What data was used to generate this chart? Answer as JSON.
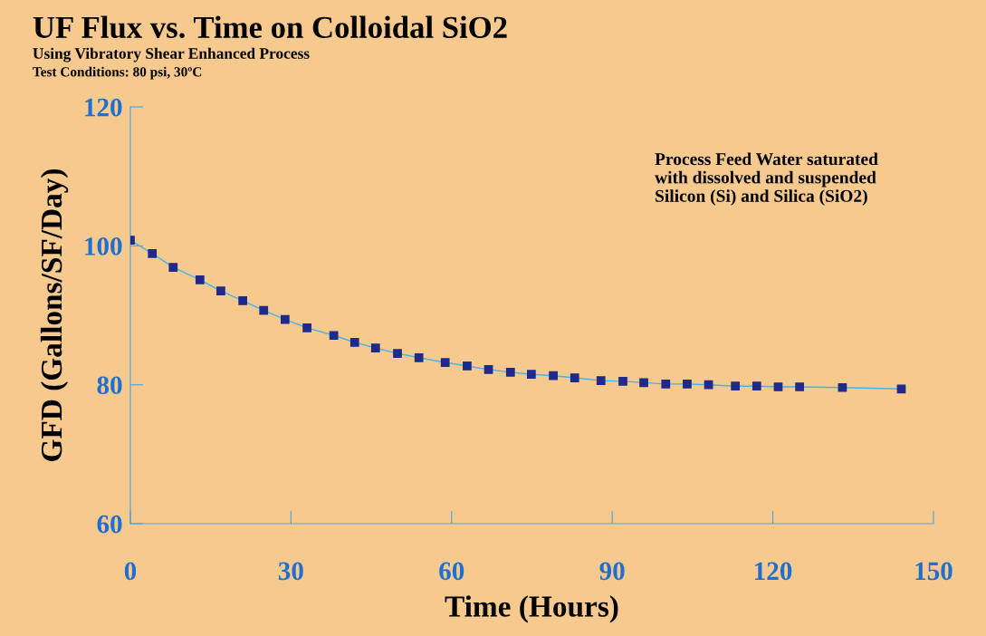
{
  "chart_data": {
    "type": "line",
    "title": "UF Flux vs. Time on Colloidal SiO2",
    "subtitle": "Using Vibratory Shear Enhanced Process",
    "annotations": [
      "Test Conditions: 80 psi, 30ºC",
      "Process Feed Water saturated\nwith dissolved and suspended\nSilicon (Si) and Silica (SiO2)"
    ],
    "xlabel": "Time (Hours)",
    "ylabel": "GFD (Gallons/SF/Day)",
    "x": [
      0,
      4.1,
      8,
      13,
      16.9,
      21,
      24.9,
      28.9,
      33,
      38,
      41.9,
      45.8,
      49.9,
      53.9,
      58.8,
      62.9,
      66.9,
      71,
      74.9,
      79,
      83,
      87.9,
      92,
      95.9,
      100,
      104,
      108,
      113,
      117,
      121,
      125,
      133,
      144
    ],
    "series": [
      {
        "color": "#1f2a8a",
        "values": [
          100.8,
          98.9,
          96.9,
          95.1,
          93.5,
          92.1,
          90.7,
          89.4,
          88.2,
          87.1,
          86.1,
          85.3,
          84.5,
          83.9,
          83.2,
          82.7,
          82.2,
          81.8,
          81.5,
          81.3,
          81.0,
          80.6,
          80.5,
          80.3,
          80.1,
          80.1,
          80.0,
          79.8,
          79.8,
          79.7,
          79.7,
          79.6,
          79.4
        ]
      }
    ],
    "xlim": [
      0,
      150
    ],
    "xticks": [
      0,
      30,
      60,
      90,
      120,
      150
    ],
    "ylim": [
      60,
      120
    ],
    "yticks": [
      60,
      80,
      100,
      120
    ],
    "grid": false,
    "marker": "square",
    "line_style": "solid"
  }
}
